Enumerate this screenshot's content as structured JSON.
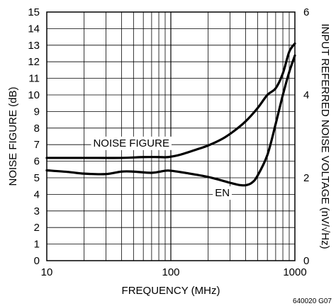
{
  "chart_data": {
    "type": "line",
    "xlabel": "FREQUENCY (MHz)",
    "ylabel_left": "NOISE FIGURE (dB)",
    "ylabel_right": "INPUT REFERRED NOISE VOLTAGE (nV/√Hz)",
    "x_scale": "log",
    "xlim": [
      10,
      1000
    ],
    "ylim_left": [
      0,
      15
    ],
    "ylim_right": [
      0,
      6
    ],
    "grid": true,
    "x_ticks": [
      "10",
      "100",
      "1000"
    ],
    "y_ticks_left": [
      "0",
      "1",
      "2",
      "3",
      "4",
      "5",
      "6",
      "7",
      "8",
      "9",
      "10",
      "11",
      "12",
      "13",
      "14",
      "15"
    ],
    "y_ticks_right": [
      "0",
      "2",
      "4",
      "6"
    ],
    "series": [
      {
        "name": "NOISE FIGURE",
        "axis": "left",
        "x": [
          10,
          20,
          40,
          60,
          80,
          95,
          120,
          160,
          200,
          260,
          320,
          400,
          500,
          600,
          700,
          800,
          900,
          1000
        ],
        "y": [
          6.2,
          6.2,
          6.2,
          6.25,
          6.25,
          6.25,
          6.4,
          6.7,
          6.95,
          7.35,
          7.8,
          8.4,
          9.2,
          10.0,
          10.4,
          11.3,
          12.6,
          13.1
        ]
      },
      {
        "name": "EN",
        "axis": "right",
        "x": [
          10,
          15,
          20,
          30,
          40,
          50,
          70,
          90,
          100,
          130,
          200,
          300,
          350,
          400,
          450,
          500,
          600,
          700,
          800,
          900,
          1000
        ],
        "y": [
          2.18,
          2.14,
          2.1,
          2.09,
          2.15,
          2.15,
          2.12,
          2.17,
          2.17,
          2.12,
          2.02,
          1.88,
          1.83,
          1.82,
          1.88,
          2.05,
          2.55,
          3.3,
          4.0,
          4.55,
          4.95
        ]
      }
    ],
    "annotation": "640020 G07"
  }
}
